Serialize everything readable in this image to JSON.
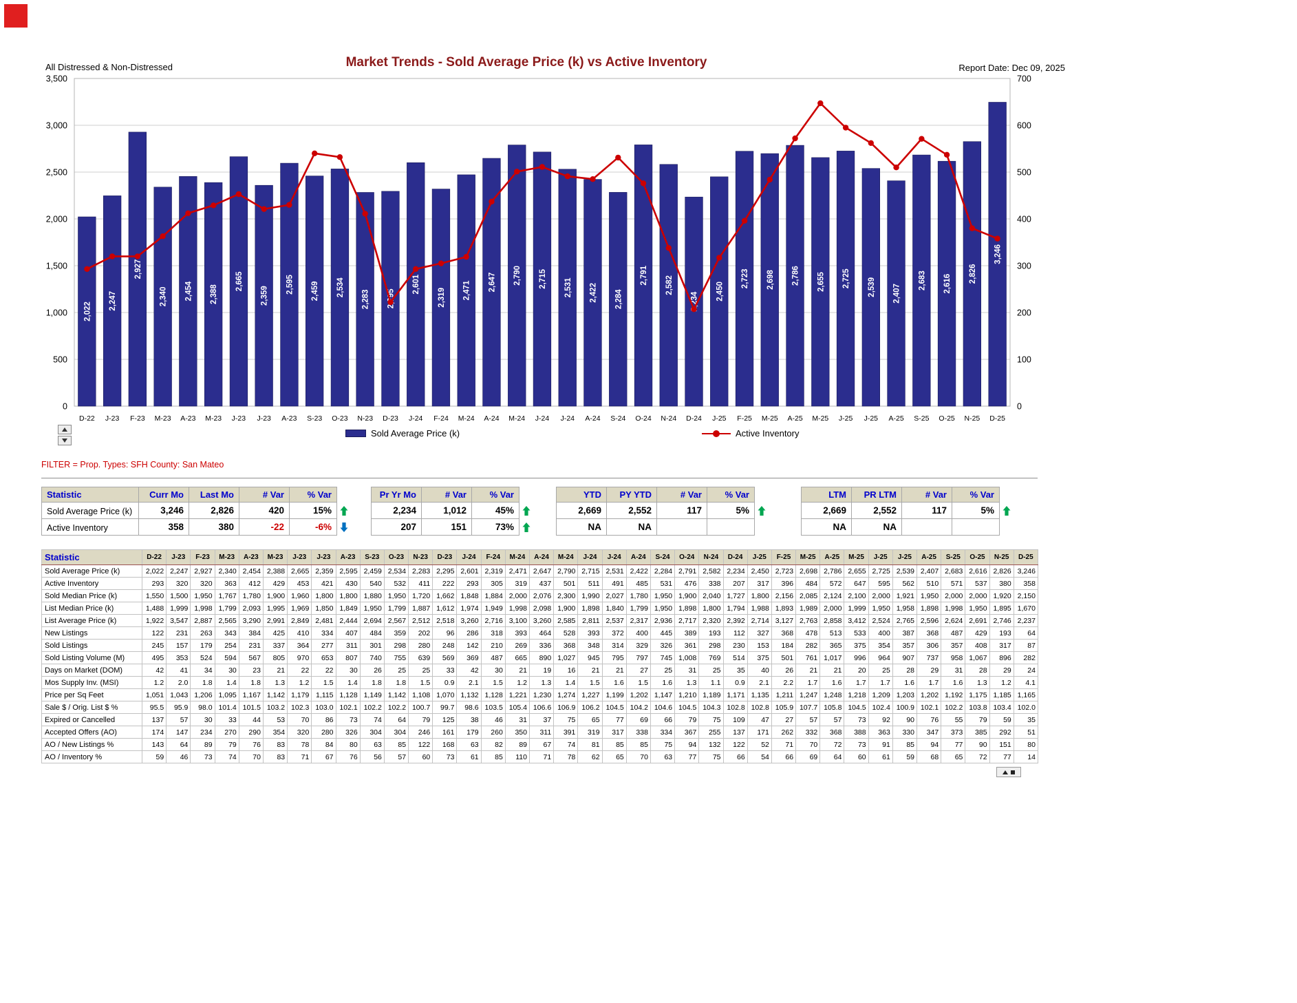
{
  "header": {
    "subtitle": "All Distressed & Non-Distressed",
    "title": "Market Trends - Sold Average Price (k) vs Active Inventory",
    "report_date": "Report Date: Dec 09, 2025"
  },
  "filter": {
    "text": "FILTER = Prop. Types: SFH  County: San Mateo"
  },
  "legend": {
    "bar_label": "Sold Average Price (k)",
    "line_label": "Active Inventory"
  },
  "colors": {
    "bar": "#2b2d8e",
    "bar_edge": "#191a5a",
    "line": "#cc0000",
    "title": "#8b1a1a",
    "filter_text": "#cc0000",
    "header_bg": "#ddd9c3",
    "header_text": "#0000cc",
    "negative": "#cc0000",
    "up_arrow": "#00a651",
    "down_arrow": "#0070c0",
    "corner_marker": "#e01f1f"
  },
  "chart_data": {
    "type": "bar",
    "combo": "bar+line",
    "title": "Market Trends - Sold Average Price (k) vs Active Inventory",
    "categories": [
      "D-22",
      "J-23",
      "F-23",
      "M-23",
      "A-23",
      "M-23",
      "J-23",
      "J-23",
      "A-23",
      "S-23",
      "O-23",
      "N-23",
      "D-23",
      "J-24",
      "F-24",
      "M-24",
      "A-24",
      "M-24",
      "J-24",
      "J-24",
      "A-24",
      "S-24",
      "O-24",
      "N-24",
      "D-24",
      "J-25",
      "F-25",
      "M-25",
      "A-25",
      "M-25",
      "J-25",
      "J-25",
      "A-25",
      "S-25",
      "O-25",
      "N-25",
      "D-25"
    ],
    "series": [
      {
        "name": "Sold Average Price (k)",
        "type": "bar",
        "axis": "left",
        "values": [
          2022,
          2247,
          2927,
          2340,
          2454,
          2388,
          2665,
          2359,
          2595,
          2459,
          2534,
          2283,
          2295,
          2601,
          2319,
          2471,
          2647,
          2790,
          2715,
          2531,
          2422,
          2284,
          2791,
          2582,
          2234,
          2450,
          2723,
          2698,
          2786,
          2655,
          2725,
          2539,
          2407,
          2683,
          2616,
          2826,
          3246
        ]
      },
      {
        "name": "Active Inventory",
        "type": "line",
        "axis": "right",
        "values": [
          293,
          320,
          320,
          363,
          412,
          429,
          453,
          421,
          430,
          540,
          532,
          411,
          222,
          293,
          305,
          319,
          437,
          501,
          511,
          491,
          485,
          531,
          476,
          338,
          207,
          317,
          396,
          484,
          572,
          647,
          595,
          562,
          510,
          571,
          537,
          380,
          358
        ]
      }
    ],
    "left_axis": {
      "min": 0,
      "max": 3500,
      "step": 500
    },
    "right_axis": {
      "min": 0,
      "max": 700,
      "step": 100
    },
    "grid": true,
    "legend_position": "bottom",
    "bar_label_rotation": -90
  },
  "summary_table": {
    "statistic_header": "Statistic",
    "groups": [
      {
        "headers": [
          "Curr Mo",
          "Last Mo",
          "# Var",
          "% Var"
        ]
      },
      {
        "headers": [
          "Pr Yr Mo",
          "# Var",
          "% Var"
        ]
      },
      {
        "headers": [
          "YTD",
          "PY YTD",
          "# Var",
          "% Var"
        ]
      },
      {
        "headers": [
          "LTM",
          "PR LTM",
          "# Var",
          "% Var"
        ]
      }
    ],
    "rows": [
      {
        "label": "Sold Average Price (k)",
        "groups": [
          {
            "cells": [
              "3,246",
              "2,826",
              "420",
              "15%"
            ],
            "trend": "up"
          },
          {
            "cells": [
              "2,234",
              "1,012",
              "45%"
            ],
            "trend": "up"
          },
          {
            "cells": [
              "2,669",
              "2,552",
              "117",
              "5%"
            ],
            "trend": "up"
          },
          {
            "cells": [
              "2,669",
              "2,552",
              "117",
              "5%"
            ],
            "trend": "up"
          }
        ]
      },
      {
        "label": "Active Inventory",
        "groups": [
          {
            "cells": [
              "358",
              "380",
              "-22",
              "-6%"
            ],
            "trend": "down"
          },
          {
            "cells": [
              "207",
              "151",
              "73%"
            ],
            "trend": "up"
          },
          {
            "cells": [
              "NA",
              "NA",
              "",
              ""
            ],
            "trend": null
          },
          {
            "cells": [
              "NA",
              "NA",
              "",
              ""
            ],
            "trend": null
          }
        ]
      }
    ]
  },
  "monthly_table": {
    "statistic_header": "Statistic",
    "months": [
      "D-22",
      "J-23",
      "F-23",
      "M-23",
      "A-23",
      "M-23",
      "J-23",
      "J-23",
      "A-23",
      "S-23",
      "O-23",
      "N-23",
      "D-23",
      "J-24",
      "F-24",
      "M-24",
      "A-24",
      "M-24",
      "J-24",
      "J-24",
      "A-24",
      "S-24",
      "O-24",
      "N-24",
      "D-24",
      "J-25",
      "F-25",
      "M-25",
      "A-25",
      "M-25",
      "J-25",
      "J-25",
      "A-25",
      "S-25",
      "O-25",
      "N-25",
      "D-25"
    ],
    "rows": [
      {
        "label": "Sold Average Price (k)",
        "values": [
          "2,022",
          "2,247",
          "2,927",
          "2,340",
          "2,454",
          "2,388",
          "2,665",
          "2,359",
          "2,595",
          "2,459",
          "2,534",
          "2,283",
          "2,295",
          "2,601",
          "2,319",
          "2,471",
          "2,647",
          "2,790",
          "2,715",
          "2,531",
          "2,422",
          "2,284",
          "2,791",
          "2,582",
          "2,234",
          "2,450",
          "2,723",
          "2,698",
          "2,786",
          "2,655",
          "2,725",
          "2,539",
          "2,407",
          "2,683",
          "2,616",
          "2,826",
          "3,246"
        ]
      },
      {
        "label": "Active Inventory",
        "values": [
          "293",
          "320",
          "320",
          "363",
          "412",
          "429",
          "453",
          "421",
          "430",
          "540",
          "532",
          "411",
          "222",
          "293",
          "305",
          "319",
          "437",
          "501",
          "511",
          "491",
          "485",
          "531",
          "476",
          "338",
          "207",
          "317",
          "396",
          "484",
          "572",
          "647",
          "595",
          "562",
          "510",
          "571",
          "537",
          "380",
          "358"
        ]
      },
      {
        "label": "Sold Median Price (k)",
        "values": [
          "1,550",
          "1,500",
          "1,950",
          "1,767",
          "1,780",
          "1,900",
          "1,960",
          "1,800",
          "1,800",
          "1,880",
          "1,950",
          "1,720",
          "1,662",
          "1,848",
          "1,884",
          "2,000",
          "2,076",
          "2,300",
          "1,990",
          "2,027",
          "1,780",
          "1,950",
          "1,900",
          "2,040",
          "1,727",
          "1,800",
          "2,156",
          "2,085",
          "2,124",
          "2,100",
          "2,000",
          "1,921",
          "1,950",
          "2,000",
          "2,000",
          "1,920",
          "2,150"
        ]
      },
      {
        "label": "List Median Price (k)",
        "values": [
          "1,488",
          "1,999",
          "1,998",
          "1,799",
          "2,093",
          "1,995",
          "1,969",
          "1,850",
          "1,849",
          "1,950",
          "1,799",
          "1,887",
          "1,612",
          "1,974",
          "1,949",
          "1,998",
          "2,098",
          "1,900",
          "1,898",
          "1,840",
          "1,799",
          "1,950",
          "1,898",
          "1,800",
          "1,794",
          "1,988",
          "1,893",
          "1,989",
          "2,000",
          "1,999",
          "1,950",
          "1,958",
          "1,898",
          "1,998",
          "1,950",
          "1,895",
          "1,670"
        ]
      },
      {
        "label": "List Average Price (k)",
        "values": [
          "1,922",
          "3,547",
          "2,887",
          "2,565",
          "3,290",
          "2,991",
          "2,849",
          "2,481",
          "2,444",
          "2,694",
          "2,567",
          "2,512",
          "2,518",
          "3,260",
          "2,716",
          "3,100",
          "3,260",
          "2,585",
          "2,811",
          "2,537",
          "2,317",
          "2,936",
          "2,717",
          "2,320",
          "2,392",
          "2,714",
          "3,127",
          "2,763",
          "2,858",
          "3,412",
          "2,524",
          "2,765",
          "2,596",
          "2,624",
          "2,691",
          "2,746",
          "2,237"
        ]
      },
      {
        "label": "New Listings",
        "values": [
          "122",
          "231",
          "263",
          "343",
          "384",
          "425",
          "410",
          "334",
          "407",
          "484",
          "359",
          "202",
          "96",
          "286",
          "318",
          "393",
          "464",
          "528",
          "393",
          "372",
          "400",
          "445",
          "389",
          "193",
          "112",
          "327",
          "368",
          "478",
          "513",
          "533",
          "400",
          "387",
          "368",
          "487",
          "429",
          "193",
          "64"
        ]
      },
      {
        "label": "Sold Listings",
        "values": [
          "245",
          "157",
          "179",
          "254",
          "231",
          "337",
          "364",
          "277",
          "311",
          "301",
          "298",
          "280",
          "248",
          "142",
          "210",
          "269",
          "336",
          "368",
          "348",
          "314",
          "329",
          "326",
          "361",
          "298",
          "230",
          "153",
          "184",
          "282",
          "365",
          "375",
          "354",
          "357",
          "306",
          "357",
          "408",
          "317",
          "87"
        ]
      },
      {
        "label": "Sold Listing Volume (M)",
        "values": [
          "495",
          "353",
          "524",
          "594",
          "567",
          "805",
          "970",
          "653",
          "807",
          "740",
          "755",
          "639",
          "569",
          "369",
          "487",
          "665",
          "890",
          "1,027",
          "945",
          "795",
          "797",
          "745",
          "1,008",
          "769",
          "514",
          "375",
          "501",
          "761",
          "1,017",
          "996",
          "964",
          "907",
          "737",
          "958",
          "1,067",
          "896",
          "282"
        ]
      },
      {
        "label": "Days on Market (DOM)",
        "values": [
          "42",
          "41",
          "34",
          "30",
          "23",
          "21",
          "22",
          "22",
          "30",
          "26",
          "25",
          "25",
          "33",
          "42",
          "30",
          "21",
          "19",
          "16",
          "21",
          "21",
          "27",
          "25",
          "31",
          "25",
          "35",
          "40",
          "26",
          "21",
          "21",
          "20",
          "25",
          "28",
          "29",
          "31",
          "28",
          "29",
          "24"
        ]
      },
      {
        "label": "Mos Supply Inv. (MSI)",
        "values": [
          "1.2",
          "2.0",
          "1.8",
          "1.4",
          "1.8",
          "1.3",
          "1.2",
          "1.5",
          "1.4",
          "1.8",
          "1.8",
          "1.5",
          "0.9",
          "2.1",
          "1.5",
          "1.2",
          "1.3",
          "1.4",
          "1.5",
          "1.6",
          "1.5",
          "1.6",
          "1.3",
          "1.1",
          "0.9",
          "2.1",
          "2.2",
          "1.7",
          "1.6",
          "1.7",
          "1.7",
          "1.6",
          "1.7",
          "1.6",
          "1.3",
          "1.2",
          "4.1"
        ]
      },
      {
        "label": "Price per Sq Feet",
        "values": [
          "1,051",
          "1,043",
          "1,206",
          "1,095",
          "1,167",
          "1,142",
          "1,179",
          "1,115",
          "1,128",
          "1,149",
          "1,142",
          "1,108",
          "1,070",
          "1,132",
          "1,128",
          "1,221",
          "1,230",
          "1,274",
          "1,227",
          "1,199",
          "1,202",
          "1,147",
          "1,210",
          "1,189",
          "1,171",
          "1,135",
          "1,211",
          "1,247",
          "1,248",
          "1,218",
          "1,209",
          "1,203",
          "1,202",
          "1,192",
          "1,175",
          "1,185",
          "1,165"
        ]
      },
      {
        "label": "Sale $ / Orig. List $ %",
        "values": [
          "95.5",
          "95.9",
          "98.0",
          "101.4",
          "101.5",
          "103.2",
          "102.3",
          "103.0",
          "102.1",
          "102.2",
          "102.2",
          "100.7",
          "99.7",
          "98.6",
          "103.5",
          "105.4",
          "106.6",
          "106.9",
          "106.2",
          "104.5",
          "104.2",
          "104.6",
          "104.5",
          "104.3",
          "102.8",
          "102.8",
          "105.9",
          "107.7",
          "105.8",
          "104.5",
          "102.4",
          "100.9",
          "102.1",
          "102.2",
          "103.8",
          "103.4",
          "102.0"
        ]
      },
      {
        "label": "Expired or Cancelled",
        "values": [
          "137",
          "57",
          "30",
          "33",
          "44",
          "53",
          "70",
          "86",
          "73",
          "74",
          "64",
          "79",
          "125",
          "38",
          "46",
          "31",
          "37",
          "75",
          "65",
          "77",
          "69",
          "66",
          "79",
          "75",
          "109",
          "47",
          "27",
          "57",
          "57",
          "73",
          "92",
          "90",
          "76",
          "55",
          "79",
          "59",
          "35"
        ]
      },
      {
        "label": "Accepted Offers (AO)",
        "values": [
          "174",
          "147",
          "234",
          "270",
          "290",
          "354",
          "320",
          "280",
          "326",
          "304",
          "304",
          "246",
          "161",
          "179",
          "260",
          "350",
          "311",
          "391",
          "319",
          "317",
          "338",
          "334",
          "367",
          "255",
          "137",
          "171",
          "262",
          "332",
          "368",
          "388",
          "363",
          "330",
          "347",
          "373",
          "385",
          "292",
          "51"
        ]
      },
      {
        "label": "AO / New Listings %",
        "values": [
          "143",
          "64",
          "89",
          "79",
          "76",
          "83",
          "78",
          "84",
          "80",
          "63",
          "85",
          "122",
          "168",
          "63",
          "82",
          "89",
          "67",
          "74",
          "81",
          "85",
          "85",
          "75",
          "94",
          "132",
          "122",
          "52",
          "71",
          "70",
          "72",
          "73",
          "91",
          "85",
          "94",
          "77",
          "90",
          "151",
          "80"
        ]
      },
      {
        "label": "AO / Inventory %",
        "values": [
          "59",
          "46",
          "73",
          "74",
          "70",
          "83",
          "71",
          "67",
          "76",
          "56",
          "57",
          "60",
          "73",
          "61",
          "85",
          "110",
          "71",
          "78",
          "62",
          "65",
          "70",
          "63",
          "77",
          "75",
          "66",
          "54",
          "66",
          "69",
          "64",
          "60",
          "61",
          "59",
          "68",
          "65",
          "72",
          "77",
          "14"
        ]
      }
    ]
  }
}
